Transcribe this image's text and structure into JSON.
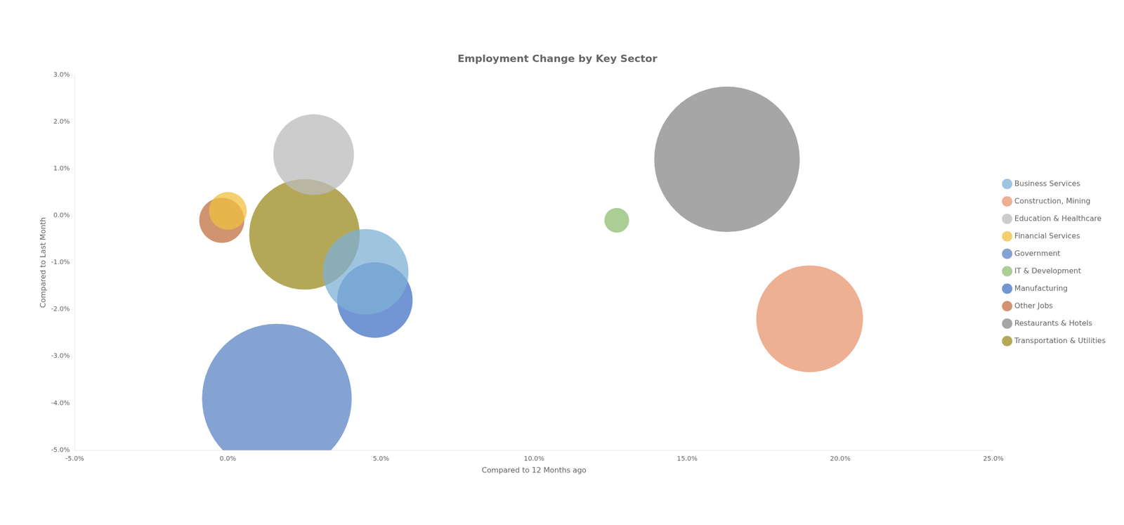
{
  "chart_data": {
    "type": "bubble",
    "title": "Employment Change by Key Sector",
    "xlabel": "Compared to 12 Months ago",
    "ylabel": "Compared to Last Month",
    "xlim": [
      -0.05,
      0.25
    ],
    "ylim": [
      -0.05,
      0.03
    ],
    "xticks": [
      {
        "value": -0.05,
        "label": "-5.0%"
      },
      {
        "value": 0.0,
        "label": "0.0%"
      },
      {
        "value": 0.05,
        "label": "5.0%"
      },
      {
        "value": 0.1,
        "label": "10.0%"
      },
      {
        "value": 0.15,
        "label": "15.0%"
      },
      {
        "value": 0.2,
        "label": "20.0%"
      },
      {
        "value": 0.25,
        "label": "25.0%"
      }
    ],
    "yticks": [
      {
        "value": -0.05,
        "label": "-5.0%"
      },
      {
        "value": -0.04,
        "label": "-4.0%"
      },
      {
        "value": -0.03,
        "label": "-3.0%"
      },
      {
        "value": -0.02,
        "label": "-2.0%"
      },
      {
        "value": -0.01,
        "label": "-1.0%"
      },
      {
        "value": 0.0,
        "label": "0.0%"
      },
      {
        "value": 0.01,
        "label": "1.0%"
      },
      {
        "value": 0.02,
        "label": "2.0%"
      },
      {
        "value": 0.03,
        "label": "3.0%"
      }
    ],
    "grid": false,
    "legend": "right",
    "series": [
      {
        "name": "Business Services",
        "color": "#7EB0D5",
        "x": [
          0.045
        ],
        "y": [
          -0.012
        ],
        "size": [
          18000
        ]
      },
      {
        "name": "Construction, Mining",
        "color": "#E8956D",
        "x": [
          0.19
        ],
        "y": [
          -0.022
        ],
        "size": [
          28000
        ]
      },
      {
        "name": "Education & Healthcare",
        "color": "#BBBBBB",
        "x": [
          0.028
        ],
        "y": [
          0.013
        ],
        "size": [
          16000
        ]
      },
      {
        "name": "Financial Services",
        "color": "#F0C040",
        "x": [
          0.0
        ],
        "y": [
          0.001
        ],
        "size": [
          3500
        ]
      },
      {
        "name": "Government",
        "color": "#5B84C4",
        "x": [
          0.016
        ],
        "y": [
          -0.039
        ],
        "size": [
          55000
        ]
      },
      {
        "name": "IT & Development",
        "color": "#8FBD72",
        "x": [
          0.127
        ],
        "y": [
          -0.001
        ],
        "size": [
          1500
        ]
      },
      {
        "name": "Manufacturing",
        "color": "#4472C4",
        "x": [
          0.048
        ],
        "y": [
          -0.018
        ],
        "size": [
          14000
        ]
      },
      {
        "name": "Other Jobs",
        "color": "#C07040",
        "x": [
          -0.002
        ],
        "y": [
          -0.001
        ],
        "size": [
          5000
        ]
      },
      {
        "name": "Restaurants & Hotels",
        "color": "#888888",
        "x": [
          0.163
        ],
        "y": [
          0.012
        ],
        "size": [
          52000
        ]
      },
      {
        "name": "Transportation & Utilities",
        "color": "#9B8B20",
        "x": [
          0.025
        ],
        "y": [
          -0.004
        ],
        "size": [
          30000
        ]
      }
    ]
  }
}
